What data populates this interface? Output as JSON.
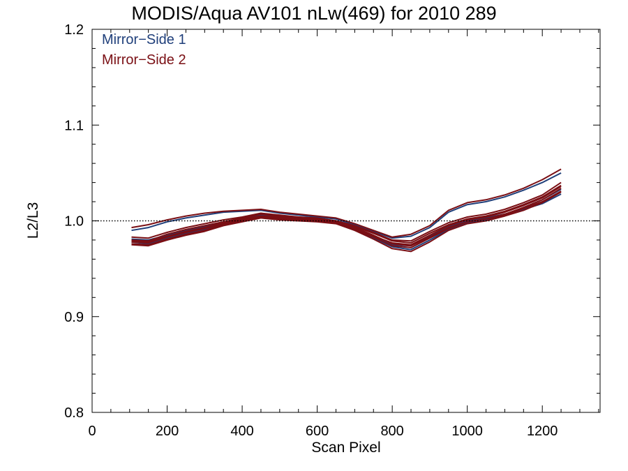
{
  "chart_data": {
    "type": "line",
    "title": "MODIS/Aqua AV101 nLw(469) for 2010 289",
    "xlabel": "Scan Pixel",
    "ylabel": "L2/L3",
    "xlim": [
      0,
      1354
    ],
    "ylim": [
      0.8,
      1.2
    ],
    "x_ticks": [
      0,
      200,
      400,
      600,
      800,
      1000,
      1200
    ],
    "y_ticks": [
      0.8,
      0.9,
      1.0,
      1.1,
      1.2
    ],
    "x_tick_labels": [
      "0",
      "200",
      "400",
      "600",
      "800",
      "1000",
      "1200"
    ],
    "y_tick_labels": [
      "0.8",
      "0.9",
      "1.0",
      "1.1",
      "1.2"
    ],
    "reference_line": {
      "y": 1.0,
      "style": "dotted"
    },
    "legend": {
      "position": "top-left",
      "entries": [
        "Mirror−Side 1",
        "Mirror−Side 2"
      ]
    },
    "colors": {
      "Mirror−Side 1": "#1f3f7a",
      "Mirror−Side 2": "#7a0f14"
    },
    "x": [
      105,
      150,
      200,
      250,
      300,
      350,
      400,
      450,
      500,
      550,
      600,
      650,
      700,
      750,
      800,
      850,
      900,
      950,
      1000,
      1050,
      1100,
      1150,
      1200,
      1250
    ],
    "series": [
      {
        "group": "Mirror−Side 1",
        "values": [
          0.978,
          0.976,
          0.982,
          0.987,
          0.991,
          0.996,
          1.0,
          1.004,
          1.002,
          1.001,
          1.0,
          0.999,
          0.992,
          0.984,
          0.975,
          0.974,
          0.984,
          0.994,
          1.0,
          1.003,
          1.007,
          1.012,
          1.018,
          1.028
        ]
      },
      {
        "group": "Mirror−Side 1",
        "values": [
          0.99,
          0.993,
          0.999,
          1.003,
          1.006,
          1.009,
          1.01,
          1.011,
          1.008,
          1.006,
          1.004,
          1.002,
          0.996,
          0.989,
          0.982,
          0.984,
          0.993,
          1.009,
          1.017,
          1.02,
          1.025,
          1.032,
          1.04,
          1.05
        ]
      },
      {
        "group": "Mirror−Side 1",
        "values": [
          0.981,
          0.98,
          0.985,
          0.99,
          0.994,
          0.998,
          1.002,
          1.006,
          1.004,
          1.003,
          1.001,
          0.998,
          0.991,
          0.982,
          0.973,
          0.97,
          0.98,
          0.991,
          0.998,
          1.001,
          1.006,
          1.014,
          1.022,
          1.033
        ]
      },
      {
        "group": "Mirror−Side 2",
        "values": [
          0.975,
          0.974,
          0.98,
          0.985,
          0.989,
          0.995,
          0.999,
          1.003,
          1.001,
          1.0,
          0.999,
          0.997,
          0.99,
          0.981,
          0.971,
          0.968,
          0.978,
          0.99,
          0.997,
          1.0,
          1.005,
          1.011,
          1.019,
          1.03
        ]
      },
      {
        "group": "Mirror−Side 2",
        "values": [
          0.978,
          0.977,
          0.983,
          0.988,
          0.992,
          0.997,
          1.001,
          1.005,
          1.003,
          1.002,
          1.0,
          0.998,
          0.993,
          0.985,
          0.976,
          0.974,
          0.983,
          0.993,
          0.999,
          1.002,
          1.007,
          1.014,
          1.022,
          1.034
        ]
      },
      {
        "group": "Mirror−Side 2",
        "values": [
          0.98,
          0.979,
          0.986,
          0.991,
          0.995,
          0.999,
          1.003,
          1.007,
          1.005,
          1.004,
          1.002,
          1.0,
          0.994,
          0.987,
          0.979,
          0.977,
          0.987,
          0.996,
          1.002,
          1.005,
          1.01,
          1.017,
          1.025,
          1.037
        ]
      },
      {
        "group": "Mirror−Side 2",
        "values": [
          0.983,
          0.982,
          0.988,
          0.993,
          0.997,
          1.001,
          1.004,
          1.008,
          1.006,
          1.004,
          1.003,
          1.0,
          0.995,
          0.988,
          0.98,
          0.979,
          0.989,
          0.998,
          1.004,
          1.007,
          1.012,
          1.019,
          1.027,
          1.04
        ]
      },
      {
        "group": "Mirror−Side 2",
        "values": [
          0.993,
          0.996,
          1.001,
          1.005,
          1.008,
          1.01,
          1.011,
          1.012,
          1.009,
          1.007,
          1.005,
          1.003,
          0.997,
          0.99,
          0.983,
          0.986,
          0.995,
          1.011,
          1.019,
          1.022,
          1.027,
          1.034,
          1.043,
          1.054
        ]
      },
      {
        "group": "Mirror−Side 2",
        "values": [
          0.976,
          0.975,
          0.981,
          0.986,
          0.99,
          0.996,
          1.0,
          1.004,
          1.002,
          1.001,
          1.0,
          0.998,
          0.991,
          0.983,
          0.974,
          0.972,
          0.982,
          0.992,
          0.999,
          1.002,
          1.006,
          1.013,
          1.02,
          1.031
        ]
      },
      {
        "group": "Mirror−Side 2",
        "values": [
          0.979,
          0.978,
          0.984,
          0.989,
          0.993,
          0.998,
          1.002,
          1.005,
          1.004,
          1.003,
          1.001,
          0.999,
          0.992,
          0.984,
          0.977,
          0.975,
          0.985,
          0.995,
          1.001,
          1.004,
          1.009,
          1.016,
          1.024,
          1.036
        ]
      }
    ]
  }
}
